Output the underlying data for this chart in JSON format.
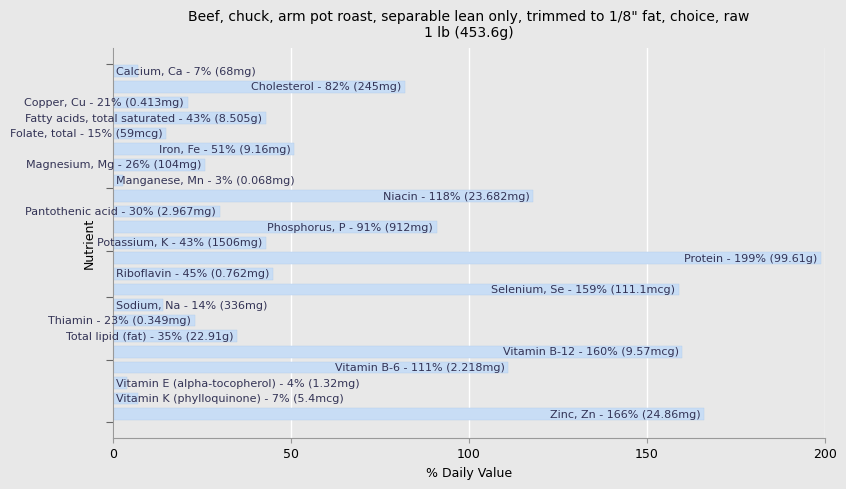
{
  "title": "Beef, chuck, arm pot roast, separable lean only, trimmed to 1/8\" fat, choice, raw\n1 lb (453.6g)",
  "xlabel": "% Daily Value",
  "ylabel": "Nutrient",
  "xlim": [
    0,
    200
  ],
  "xticks": [
    0,
    50,
    100,
    150,
    200
  ],
  "bar_color": "#c8ddf5",
  "edge_color": "#b0ccec",
  "background_color": "#e8e8e8",
  "plot_background": "#e8e8e8",
  "text_color": "#333355",
  "nutrients": [
    {
      "label": "Calcium, Ca - 7% (68mg)",
      "value": 7
    },
    {
      "label": "Cholesterol - 82% (245mg)",
      "value": 82
    },
    {
      "label": "Copper, Cu - 21% (0.413mg)",
      "value": 21
    },
    {
      "label": "Fatty acids, total saturated - 43% (8.505g)",
      "value": 43
    },
    {
      "label": "Folate, total - 15% (59mcg)",
      "value": 15
    },
    {
      "label": "Iron, Fe - 51% (9.16mg)",
      "value": 51
    },
    {
      "label": "Magnesium, Mg - 26% (104mg)",
      "value": 26
    },
    {
      "label": "Manganese, Mn - 3% (0.068mg)",
      "value": 3
    },
    {
      "label": "Niacin - 118% (23.682mg)",
      "value": 118
    },
    {
      "label": "Pantothenic acid - 30% (2.967mg)",
      "value": 30
    },
    {
      "label": "Phosphorus, P - 91% (912mg)",
      "value": 91
    },
    {
      "label": "Potassium, K - 43% (1506mg)",
      "value": 43
    },
    {
      "label": "Protein - 199% (99.61g)",
      "value": 199
    },
    {
      "label": "Riboflavin - 45% (0.762mg)",
      "value": 45
    },
    {
      "label": "Selenium, Se - 159% (111.1mcg)",
      "value": 159
    },
    {
      "label": "Sodium, Na - 14% (336mg)",
      "value": 14
    },
    {
      "label": "Thiamin - 23% (0.349mg)",
      "value": 23
    },
    {
      "label": "Total lipid (fat) - 35% (22.91g)",
      "value": 35
    },
    {
      "label": "Vitamin B-12 - 160% (9.57mcg)",
      "value": 160
    },
    {
      "label": "Vitamin B-6 - 111% (2.218mg)",
      "value": 111
    },
    {
      "label": "Vitamin E (alpha-tocopherol) - 4% (1.32mg)",
      "value": 4
    },
    {
      "label": "Vitamin K (phylloquinone) - 7% (5.4mcg)",
      "value": 7
    },
    {
      "label": "Zinc, Zn - 166% (24.86mg)",
      "value": 166
    }
  ],
  "group_tick_positions": [
    -0.5,
    7.5,
    11.5,
    14.5,
    18.5,
    22.5
  ],
  "title_fontsize": 10,
  "axis_label_fontsize": 9,
  "bar_label_fontsize": 8,
  "bar_height": 0.75
}
